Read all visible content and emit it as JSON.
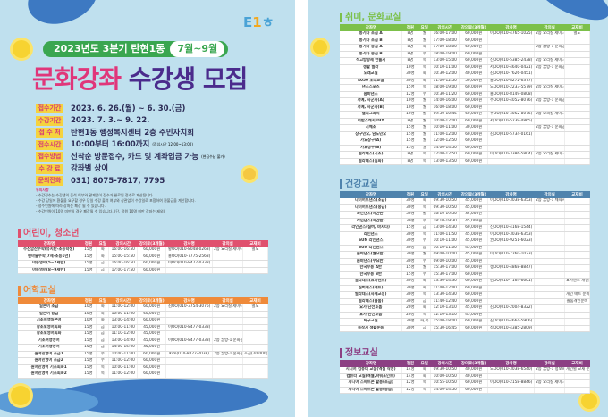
{
  "header": {
    "logo": "E1ㅎ",
    "top_line": "2023년도 3분기 탄현1동",
    "months": "7월~9월",
    "title_a": "문화강좌",
    "title_b": "수강생 모집"
  },
  "info": [
    {
      "label": "접수기간",
      "value": "2023. 6. 26.(월) ~ 6. 30.(금)",
      "note": ""
    },
    {
      "label": "수강기간",
      "value": "2023. 7. 3.~ 9. 22.",
      "note": ""
    },
    {
      "label": "접 수 처",
      "value": "탄현1동 행정복지센터 2층 주민자치회",
      "note": ""
    },
    {
      "label": "접수시간",
      "value": "10:00부터 16:00까지",
      "note": "(점심시간 12:00~13:00)"
    },
    {
      "label": "접수방법",
      "value": "선착순 방문접수, 카드 및 계좌입금 가능",
      "note": "(현금수납 불가)"
    },
    {
      "label": "수 강 료",
      "value": "강좌별 상이",
      "note": ""
    },
    {
      "label": "문의전화",
      "value": "031) 8075-7817, 7795",
      "note": ""
    }
  ],
  "notes": {
    "heading": "유의사항",
    "items": [
      "- 수강정수는 수강생의 출석 여부와 관계없이 접수가 완료된 정수로 계산됩니다.",
      "- 수강 당일에 환불을 요구할 경우 당일 수강 출석 여부와 상관없이 수강일로 포함하여 환불금을 계산합니다.",
      "- 정수인원에 따라 강좌는 폐강 될 수 있습니다.",
      "- 수강인원이 10명 미만일 경우 폐강될 수 있습니다. (단, 정원 10명 미만 강좌는 제외)"
    ]
  },
  "headers": [
    "강좌명",
    "정원",
    "요일",
    "강의시간",
    "강의료(3개월)",
    "강사명",
    "강의실",
    "교재비"
  ],
  "sections": [
    {
      "id": "kids",
      "title": "어린이, 청소년",
      "color": "#e0506e",
      "rows": [
        [
          "주산암산수학(유치반-초등학생)",
          "15명",
          "화",
          "16:00-16:50",
          "60,000원",
          "황OO(010-8048-0263)",
          "2층 요리실 세미나실(공간)",
          "별도"
        ],
        [
          "펜마술수학(7세-초등1년)",
          "15명",
          "화",
          "15:00-15:50",
          "60,000원",
          "홍OO(010-7775-2568)",
          "",
          ""
        ],
        [
          "아동영어(5~7세반)",
          "15명",
          "금",
          "16:00-16:50",
          "60,000원",
          "이OO(010-8477-0338)",
          "",
          ""
        ],
        [
          "아동영어(8~9세반)",
          "15명",
          "금",
          "17:00-17:50",
          "60,000원",
          "",
          "",
          ""
        ]
      ]
    },
    {
      "id": "lang",
      "title": "어학교실",
      "color": "#ef8a3a",
      "rows": [
        [
          "일본어 초급",
          "10명",
          "화",
          "11:00-12:00",
          "60,000원",
          "김OO(010-3754-3076)",
          "2층 요리실 세미나실(공간)",
          "별도"
        ],
        [
          "일본어 중급",
          "10명",
          "화",
          "10:00-11:00",
          "60,000원",
          "",
          "",
          ""
        ],
        [
          "기초여행일본어",
          "10명",
          "화",
          "13:00-14:00",
          "60,000원",
          "",
          "",
          ""
        ],
        [
          "왕초보영어회화",
          "15명",
          "금",
          "10:00-11:00",
          "45,000원",
          "이OO(010-8477-0338)",
          "",
          ""
        ],
        [
          "왕초보영어회화",
          "15명",
          "금",
          "11:10-12:00",
          "45,000원",
          "",
          "",
          ""
        ],
        [
          "기초여행영어",
          "15명",
          "금",
          "13:00-14:00",
          "45,000원",
          "이OO(010-8477-0338)",
          "2층 꿈방-1 문화공간",
          ""
        ],
        [
          "기초여행영어",
          "15명",
          "금",
          "14:00-15:00",
          "45,000원",
          "",
          "",
          ""
        ],
        [
          "원어민영어 초급1",
          "15명",
          "수",
          "10:00-11:00",
          "60,000원",
          "Kim(010-8477-2038)",
          "2층 꿈방-1 문화공간",
          "초급(20,000원) 교재(20,000원)"
        ],
        [
          "원어민영어 초급2",
          "15명",
          "수",
          "11:00-12:00",
          "60,000원",
          "",
          "",
          ""
        ],
        [
          "원어민영어 기초회화1",
          "15명",
          "목",
          "10:00-11:00",
          "60,000원",
          "",
          "",
          ""
        ],
        [
          "원어민영어 기초회화2",
          "15명",
          "목",
          "11:00-12:00",
          "60,000원",
          "",
          "",
          ""
        ]
      ]
    },
    {
      "id": "hobby",
      "title": "취미, 문화교실",
      "color": "#7cc04a",
      "rows": [
        [
          "통기타 초급 A",
          "8명",
          "월",
          "16:00-17:00",
          "60,000원",
          "이OO(010-4765-1025)",
          "2층 요리실 세미나실 공간",
          "별도"
        ],
        [
          "통기타 초급 B",
          "8명",
          "월",
          "17:00-18:00",
          "60,000원",
          "",
          "",
          ""
        ],
        [
          "통기타 중급 A",
          "8명",
          "화",
          "17:00-18:00",
          "60,000원",
          "",
          "2층 꿈방-1 문화공간",
          ""
        ],
        [
          "통기타 중급 B",
          "8명",
          "수",
          "18:00-19:00",
          "60,000원",
          "",
          "",
          ""
        ],
        [
          "석고방향제 만들기",
          "8명",
          "목",
          "13:00-15:00",
          "60,000원",
          "신OO(010-5385-2438)",
          "2층 요리실 세미나실 공간",
          ""
        ],
        [
          "생활 필라",
          "10명",
          "목",
          "10:10-11:00",
          "60,000원",
          "서OO(010-4640-0421)",
          "2층 꿈방-1 문화공간",
          ""
        ],
        [
          "노래교실",
          "30명",
          "화",
          "10:30-12:00",
          "40,000원",
          "김OO(010-7626-0451)",
          "",
          ""
        ],
        [
          "4050 노래교실",
          "30명",
          "화",
          "11:00-12:50",
          "50,000원",
          "홍OO(010-8272-6377)",
          "",
          ""
        ],
        [
          "댄스스포츠",
          "15명",
          "목",
          "18:00-19:00",
          "60,000원",
          "노OO(010-2233-5579)",
          "2층 요리실 세미나실 공간",
          ""
        ],
        [
          "줌바댄스",
          "12명",
          "수",
          "10:30-11:20",
          "60,000원",
          "홍OO(010-8149-0808)",
          "",
          ""
        ],
        [
          "서예, 사군자(A)",
          "10명",
          "월",
          "14:00-16:00",
          "60,000원",
          "주OO(010-4052-8076)",
          "2층 꿈방-1 문화공간",
          ""
        ],
        [
          "서예, 사군자(B)",
          "10명",
          "월",
          "16:00-18:00",
          "60,000원",
          "",
          "",
          ""
        ],
        [
          "캘리그라피",
          "10명",
          "월",
          "09:30-10:45",
          "60,000원",
          "주OO(010-4052-8076)",
          "2층 요리실 세미나실 공간",
          ""
        ],
        [
          "어반스케치 DIY",
          "8명",
          "월",
          "10:00-12:00",
          "60,000원",
          "서OO(010-5239-4865)",
          "",
          ""
        ],
        [
          "기체조",
          "15명",
          "월",
          "10:00-11:00",
          "30,000원",
          "",
          "2층 꿈방-1 문화공간",
          ""
        ],
        [
          "장구민요, 남도민요",
          "15명",
          "월",
          "11:00-12:00",
          "60,000원",
          "김OO(010-5734-0161)",
          "",
          ""
        ],
        [
          "가요장구(A)",
          "15명",
          "월",
          "12:00-12:50",
          "60,000원",
          "",
          "",
          ""
        ],
        [
          "가요장구(B)",
          "15명",
          "월",
          "14:00-14:50",
          "60,000원",
          "",
          "",
          ""
        ],
        [
          "필라테스(기초)",
          "8명",
          "목",
          "12:00-12:50",
          "60,000원",
          "이OO(010-3386-5804)",
          "2층 요리실 세미나실 공간",
          ""
        ],
        [
          "필라테스(심화)",
          "8명",
          "목",
          "13:00-13:50",
          "60,000원",
          "",
          "",
          ""
        ]
      ]
    },
    {
      "id": "health",
      "title": "건강교실",
      "color": "#4f83ad",
      "rows": [
        [
          "다이어트댄스(초급)",
          "30명",
          "화",
          "09:30-10:50",
          "45,000원",
          "이OO(010-3038-6353)",
          "2층 꿈방-1 체육시설",
          ""
        ],
        [
          "다이어트댄스(중급)",
          "30명",
          "목",
          "09:30-10:50",
          "45,000원",
          "",
          "",
          ""
        ],
        [
          "라인댄스(야간반)",
          "30명",
          "월",
          "18:10-19:30",
          "45,000원",
          "",
          "",
          ""
        ],
        [
          "라인댄스(야간반)",
          "30명",
          "수",
          "18:10-19:30",
          "45,000원",
          "",
          "",
          ""
        ],
        [
          "라인댄스(실버, 바차타)",
          "15명",
          "금",
          "13:00-14:30",
          "60,000원",
          "신OO(010-4168-1544)",
          "",
          ""
        ],
        [
          "라인댄스",
          "30명",
          "목",
          "11:00-11:50",
          "45,000원",
          "이OO(010-3038-6353)",
          "",
          ""
        ],
        [
          "SUN 라인댄스",
          "30명",
          "수",
          "10:10-11:00",
          "45,000원",
          "권OO(010-9251-6023)",
          "",
          ""
        ],
        [
          "SUN 라인댄스",
          "30명",
          "금",
          "10:10-11:00",
          "45,000원",
          "",
          "",
          ""
        ],
        [
          "줌바댄스(월요반)",
          "30명",
          "월",
          "09:00-10:00",
          "45,000원",
          "이OO(010-7260-1023)",
          "",
          ""
        ],
        [
          "줌바댄스(수요반)",
          "30명",
          "수",
          "09:00-10:00",
          "45,000원",
          "",
          "",
          ""
        ],
        [
          "한국무용 A반",
          "15명",
          "월",
          "15:30-17:00",
          "60,000원",
          "생OO(010-4868-8847)",
          "",
          ""
        ],
        [
          "한국무용 B반",
          "15명",
          "수",
          "15:30-17:00",
          "60,000원",
          "",
          "",
          ""
        ],
        [
          "필라테스(요가밴드)",
          "30명",
          "화",
          "13:30-14:30",
          "60,000원",
          "김OO(010-7164-6601)",
          "",
          "요가밴드 개인준비"
        ],
        [
          "실버에스(매트)",
          "30명",
          "화",
          "11:40-12:40",
          "60,000원",
          "",
          "",
          ""
        ],
        [
          "필라테스(자세교정)",
          "30명",
          "목",
          "13:30-14:30",
          "60,000원",
          "",
          "",
          "개인 매트 준비"
        ],
        [
          "필라테스(볼룸)",
          "30명",
          "금",
          "11:40-12:40",
          "60,000원",
          "",
          "",
          "볼룸개인준비"
        ],
        [
          "요가 단전호흡",
          "20명",
          "화",
          "12:10-13:10",
          "45,000원",
          "김OO(010-2004-8322)",
          "",
          ""
        ],
        [
          "요가 단전호흡",
          "20명",
          "목",
          "12:10-13:10",
          "45,000원",
          "",
          "",
          ""
        ],
        [
          "탁구교실",
          "30명",
          "화,목",
          "15:00-18:00",
          "60,000원",
          "김OO(010-4664-5906)",
          "",
          ""
        ],
        [
          "동작기 생활운동",
          "30명",
          "금",
          "15:30-16:45",
          "60,000원",
          "정OO(010-4385-2809)",
          "",
          ""
        ]
      ]
    },
    {
      "id": "it",
      "title": "정보교실",
      "color": "#8c3f83",
      "rows": [
        [
          "시니어 컴퓨터 교실(엑셀 작성)",
          "14명",
          "화",
          "09:30-10:50",
          "40,000원",
          "노OO(010-3038-6540)",
          "2층 꿈방-1 정보화교실",
          "개인별 교재 준비"
        ],
        [
          "컴퓨터 교실(엑셀,파워포인트)",
          "14명",
          "화",
          "10:00-10:50",
          "40,000원",
          "",
          "",
          ""
        ],
        [
          "시니어 스마트폰 활용(초급)",
          "12명",
          "목",
          "10:55-10:50",
          "60,000원",
          "이OO(010-2158-8846)",
          "2층 요리실 세미나실 공간",
          ""
        ],
        [
          "시니어 스마트폰 활용(중급)",
          "12명",
          "목",
          "14:00-14:50",
          "60,000원",
          "",
          "",
          ""
        ]
      ]
    }
  ]
}
